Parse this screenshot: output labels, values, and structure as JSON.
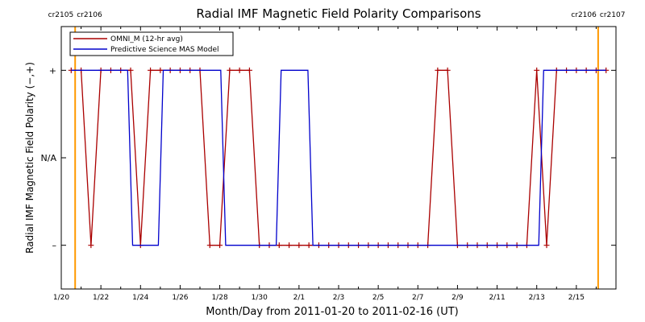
{
  "chart_data": {
    "type": "line",
    "title": "Radial IMF Magnetic Field Polarity Comparisons",
    "xlabel": "Month/Day from 2011-01-20 to 2011-02-16 (UT)",
    "ylabel": "Radial IMF Magnetic Field Polarity (−,+)",
    "xlim_days": [
      0,
      28
    ],
    "ylim": [
      -1.5,
      1.5
    ],
    "x_ticks": [
      {
        "day": 0,
        "label": "1/20"
      },
      {
        "day": 2,
        "label": "1/22"
      },
      {
        "day": 4,
        "label": "1/24"
      },
      {
        "day": 6,
        "label": "1/26"
      },
      {
        "day": 8,
        "label": "1/28"
      },
      {
        "day": 10,
        "label": "1/30"
      },
      {
        "day": 12,
        "label": "2/1"
      },
      {
        "day": 14,
        "label": "2/3"
      },
      {
        "day": 16,
        "label": "2/5"
      },
      {
        "day": 18,
        "label": "2/7"
      },
      {
        "day": 20,
        "label": "2/9"
      },
      {
        "day": 22,
        "label": "2/11"
      },
      {
        "day": 24,
        "label": "2/13"
      },
      {
        "day": 26,
        "label": "2/15"
      }
    ],
    "y_ticks": [
      {
        "value": 1,
        "label": "+"
      },
      {
        "value": 0,
        "label": "N/A"
      },
      {
        "value": -1,
        "label": "–"
      }
    ],
    "carrington_markers": [
      {
        "day": 0.7,
        "left_label": "cr2105",
        "right_label": "cr2106",
        "color": "#ff9900"
      },
      {
        "day": 27.1,
        "left_label": "cr2106",
        "right_label": "cr2107",
        "color": "#ff9900"
      }
    ],
    "legend": "top-left",
    "series": [
      {
        "name": "OMNI_M (12-hr avg)",
        "color": "#aa0000",
        "marker": "+",
        "x": [
          0.5,
          1,
          1.5,
          2,
          2.5,
          3,
          3.5,
          4,
          4.5,
          5,
          5.5,
          6,
          6.5,
          7,
          7.5,
          8,
          8.5,
          9,
          9.5,
          10,
          10.5,
          11,
          11.5,
          12,
          12.5,
          13,
          13.5,
          14,
          14.5,
          15,
          15.5,
          16,
          16.5,
          17,
          17.5,
          18,
          18.5,
          19,
          19.5,
          20,
          20.5,
          21,
          21.5,
          22,
          22.5,
          23,
          23.5,
          24,
          24.5,
          25,
          25.5,
          26,
          26.5,
          27,
          27.5
        ],
        "y": [
          1,
          1,
          -1,
          1,
          1,
          1,
          1,
          -1,
          1,
          1,
          1,
          1,
          1,
          1,
          -1,
          -1,
          1,
          1,
          1,
          -1,
          -1,
          -1,
          -1,
          -1,
          -1,
          -1,
          -1,
          -1,
          -1,
          -1,
          -1,
          -1,
          -1,
          -1,
          -1,
          -1,
          -1,
          1,
          1,
          -1,
          -1,
          -1,
          -1,
          -1,
          -1,
          -1,
          -1,
          1,
          -1,
          1,
          1,
          1,
          1,
          1,
          1
        ]
      },
      {
        "name": "Predictive Science MAS Model",
        "color": "#0000cc",
        "x": [
          0.5,
          3.35,
          3.6,
          4.9,
          5.15,
          8.05,
          8.3,
          10.85,
          11.1,
          12.45,
          12.7,
          24.1,
          24.35,
          27.5
        ],
        "y": [
          1,
          1,
          -1,
          -1,
          1,
          1,
          -1,
          -1,
          1,
          1,
          -1,
          -1,
          1,
          1
        ]
      }
    ]
  }
}
